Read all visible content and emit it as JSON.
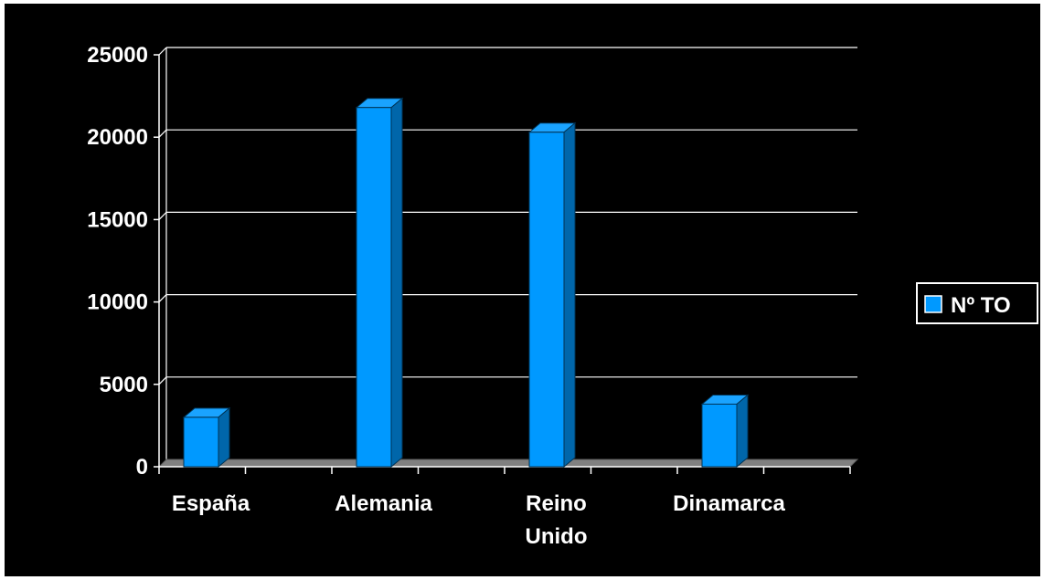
{
  "chart_data": {
    "type": "bar",
    "style": "3d-column",
    "categories": [
      [
        "España"
      ],
      [
        "Alemania"
      ],
      [
        "Reino",
        "Unido"
      ],
      [
        "Dinamarca"
      ]
    ],
    "series": [
      {
        "name": "Nº TO",
        "values": [
          3000,
          21800,
          20300,
          3800
        ]
      }
    ],
    "y_ticks": [
      "0",
      "5000",
      "10000",
      "15000",
      "20000",
      "25000"
    ],
    "ylim": [
      0,
      25000
    ],
    "grid": true,
    "legend_position": "right",
    "colors": {
      "background": "#000000",
      "bar_front": "#0099ff",
      "bar_top": "#1aa3ff",
      "bar_side": "#0066aa",
      "bar_outline": "#003355",
      "gridline": "#ffffff",
      "floor": "#808080",
      "text": "#ffffff"
    }
  }
}
